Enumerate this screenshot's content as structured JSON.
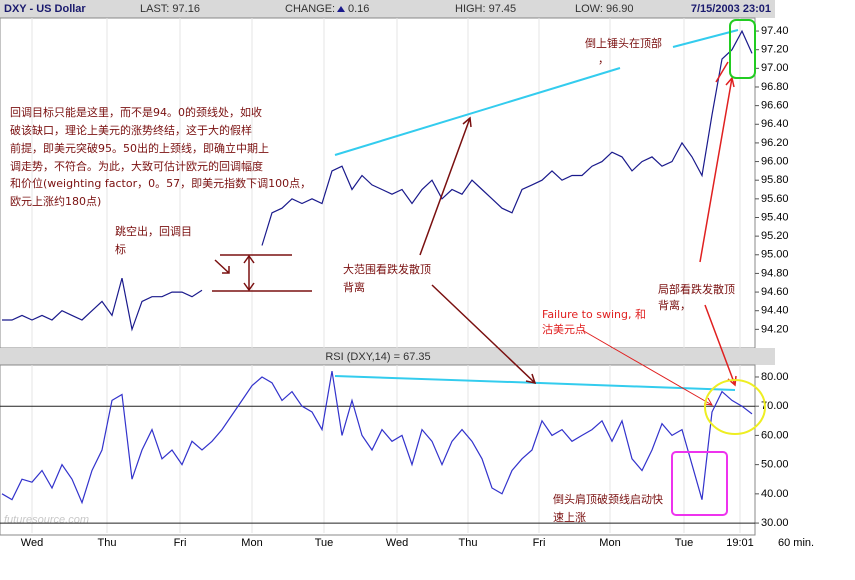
{
  "chart_data": [
    {
      "type": "line",
      "title": "DXY - US Dollar",
      "stats": [
        "LAST: 97.16",
        "CHANGE:",
        "0.16",
        "HIGH: 97.45",
        "LOW: 96.90"
      ],
      "timestamp": "7/15/2003 23:01",
      "xlim": [
        0,
        75
      ],
      "ylim": [
        94.0,
        97.54
      ],
      "yticks": [
        {
          "value": 94.2,
          "label": "94.20"
        },
        {
          "value": 94.4,
          "label": "94.40"
        },
        {
          "value": 94.6,
          "label": "94.60"
        },
        {
          "value": 94.8,
          "label": "94.80"
        },
        {
          "value": 95.0,
          "label": "95.00"
        },
        {
          "value": 95.2,
          "label": "95.20"
        },
        {
          "value": 95.4,
          "label": "95.40"
        },
        {
          "value": 95.6,
          "label": "95.60"
        },
        {
          "value": 95.8,
          "label": "95.80"
        },
        {
          "value": 96.0,
          "label": "96.00"
        },
        {
          "value": 96.2,
          "label": "96.20"
        },
        {
          "value": 96.4,
          "label": "96.40"
        },
        {
          "value": 96.6,
          "label": "96.60"
        },
        {
          "value": 96.8,
          "label": "96.80"
        },
        {
          "value": 97.0,
          "label": "97.00"
        },
        {
          "value": 97.2,
          "label": "97.20"
        },
        {
          "value": 97.4,
          "label": "97.40"
        }
      ],
      "series": [
        {
          "color": "#1a1a8c",
          "values": [
            94.3,
            94.3,
            94.35,
            94.3,
            94.35,
            94.3,
            94.4,
            94.35,
            94.3,
            94.4,
            94.5,
            94.35,
            94.75,
            94.2,
            94.5,
            94.55,
            94.55,
            94.6,
            94.6,
            94.55,
            94.62,
            null,
            null,
            null,
            null,
            null,
            95.1,
            95.45,
            95.5,
            95.6,
            95.55,
            95.6,
            95.55,
            95.9,
            95.95,
            95.7,
            95.85,
            95.75,
            95.7,
            95.65,
            95.7,
            95.55,
            95.7,
            95.8,
            95.6,
            95.7,
            95.65,
            95.8,
            95.7,
            95.6,
            95.5,
            95.45,
            95.7,
            95.75,
            95.8,
            95.9,
            95.8,
            95.85,
            95.85,
            95.95,
            96.0,
            96.1,
            96.05,
            95.9,
            96.0,
            96.05,
            95.95,
            96.0,
            96.2,
            96.05,
            95.85,
            96.5,
            97.1,
            97.2,
            97.4,
            97.16
          ]
        }
      ],
      "annotations": [
        {
          "lines": [
            "回调目标只能是这里，而不是94。0的颈线处，如收",
            "破该缺口，理论上美元的涨势终结，这于大的假样",
            "前提，即美元突破95。50出的上颈线，即确立中期上",
            "调走势，不符合。为此，大致可估计欧元的回调幅度",
            "和价位(weighting factor，0。57，即美元指数下调100点，",
            "欧元上涨约180点)"
          ]
        },
        {
          "lines": [
            "跳空出，回调目",
            "标"
          ]
        },
        {
          "lines": [
            "大范围看跌发散顶",
            "背离"
          ]
        },
        {
          "lines": [
            "倒上锤头在顶部",
            "，"
          ]
        },
        {
          "lines": [
            "局部看跌发散顶",
            "背离，"
          ]
        },
        {
          "lines": [
            "Failure to swing, 和",
            "沽美元点"
          ]
        }
      ]
    },
    {
      "type": "line",
      "title": "RSI (DXY,14) = 67.35",
      "xlim": [
        0,
        75
      ],
      "ylim": [
        26.6,
        84.1
      ],
      "levels": [
        70,
        30
      ],
      "yticks": [
        {
          "value": 30,
          "label": "30.00"
        },
        {
          "value": 40,
          "label": "40.00"
        },
        {
          "value": 50,
          "label": "50.00"
        },
        {
          "value": 60,
          "label": "60.00"
        },
        {
          "value": 70,
          "label": "70.00"
        },
        {
          "value": 80,
          "label": "80.00"
        }
      ],
      "xticks": [
        {
          "value": 3,
          "label": "Wed"
        },
        {
          "value": 10.5,
          "label": "Thu"
        },
        {
          "value": 17.8,
          "label": "Fri"
        },
        {
          "value": 25,
          "label": "Mon"
        },
        {
          "value": 32.2,
          "label": "Tue"
        },
        {
          "value": 39.5,
          "label": "Wed"
        },
        {
          "value": 46.6,
          "label": "Thu"
        },
        {
          "value": 53.7,
          "label": "Fri"
        },
        {
          "value": 60.8,
          "label": "Mon"
        },
        {
          "value": 68.2,
          "label": "Tue"
        },
        {
          "value": 73.8,
          "label": "19:01"
        }
      ],
      "interval_label": "60 min.",
      "watermark": "futuresource.com",
      "series": [
        {
          "color": "#3333cc",
          "values": [
            40,
            38,
            45,
            44,
            48,
            42,
            50,
            45,
            37,
            48,
            55,
            72,
            74,
            45,
            55,
            62,
            52,
            55,
            50,
            58,
            55,
            58,
            62,
            67,
            72,
            77,
            80,
            78,
            72,
            75,
            70,
            68,
            62,
            82,
            60,
            72,
            60,
            55,
            62,
            58,
            60,
            50,
            62,
            58,
            50,
            58,
            62,
            58,
            52,
            42,
            40,
            48,
            52,
            55,
            65,
            60,
            62,
            58,
            60,
            62,
            65,
            58,
            65,
            52,
            48,
            55,
            64,
            60,
            62,
            50,
            38,
            68,
            75,
            72,
            70,
            67.35
          ]
        }
      ],
      "annotations": [
        {
          "lines": [
            "倒头肩顶破颈线启动快",
            "速上涨"
          ]
        }
      ]
    }
  ]
}
